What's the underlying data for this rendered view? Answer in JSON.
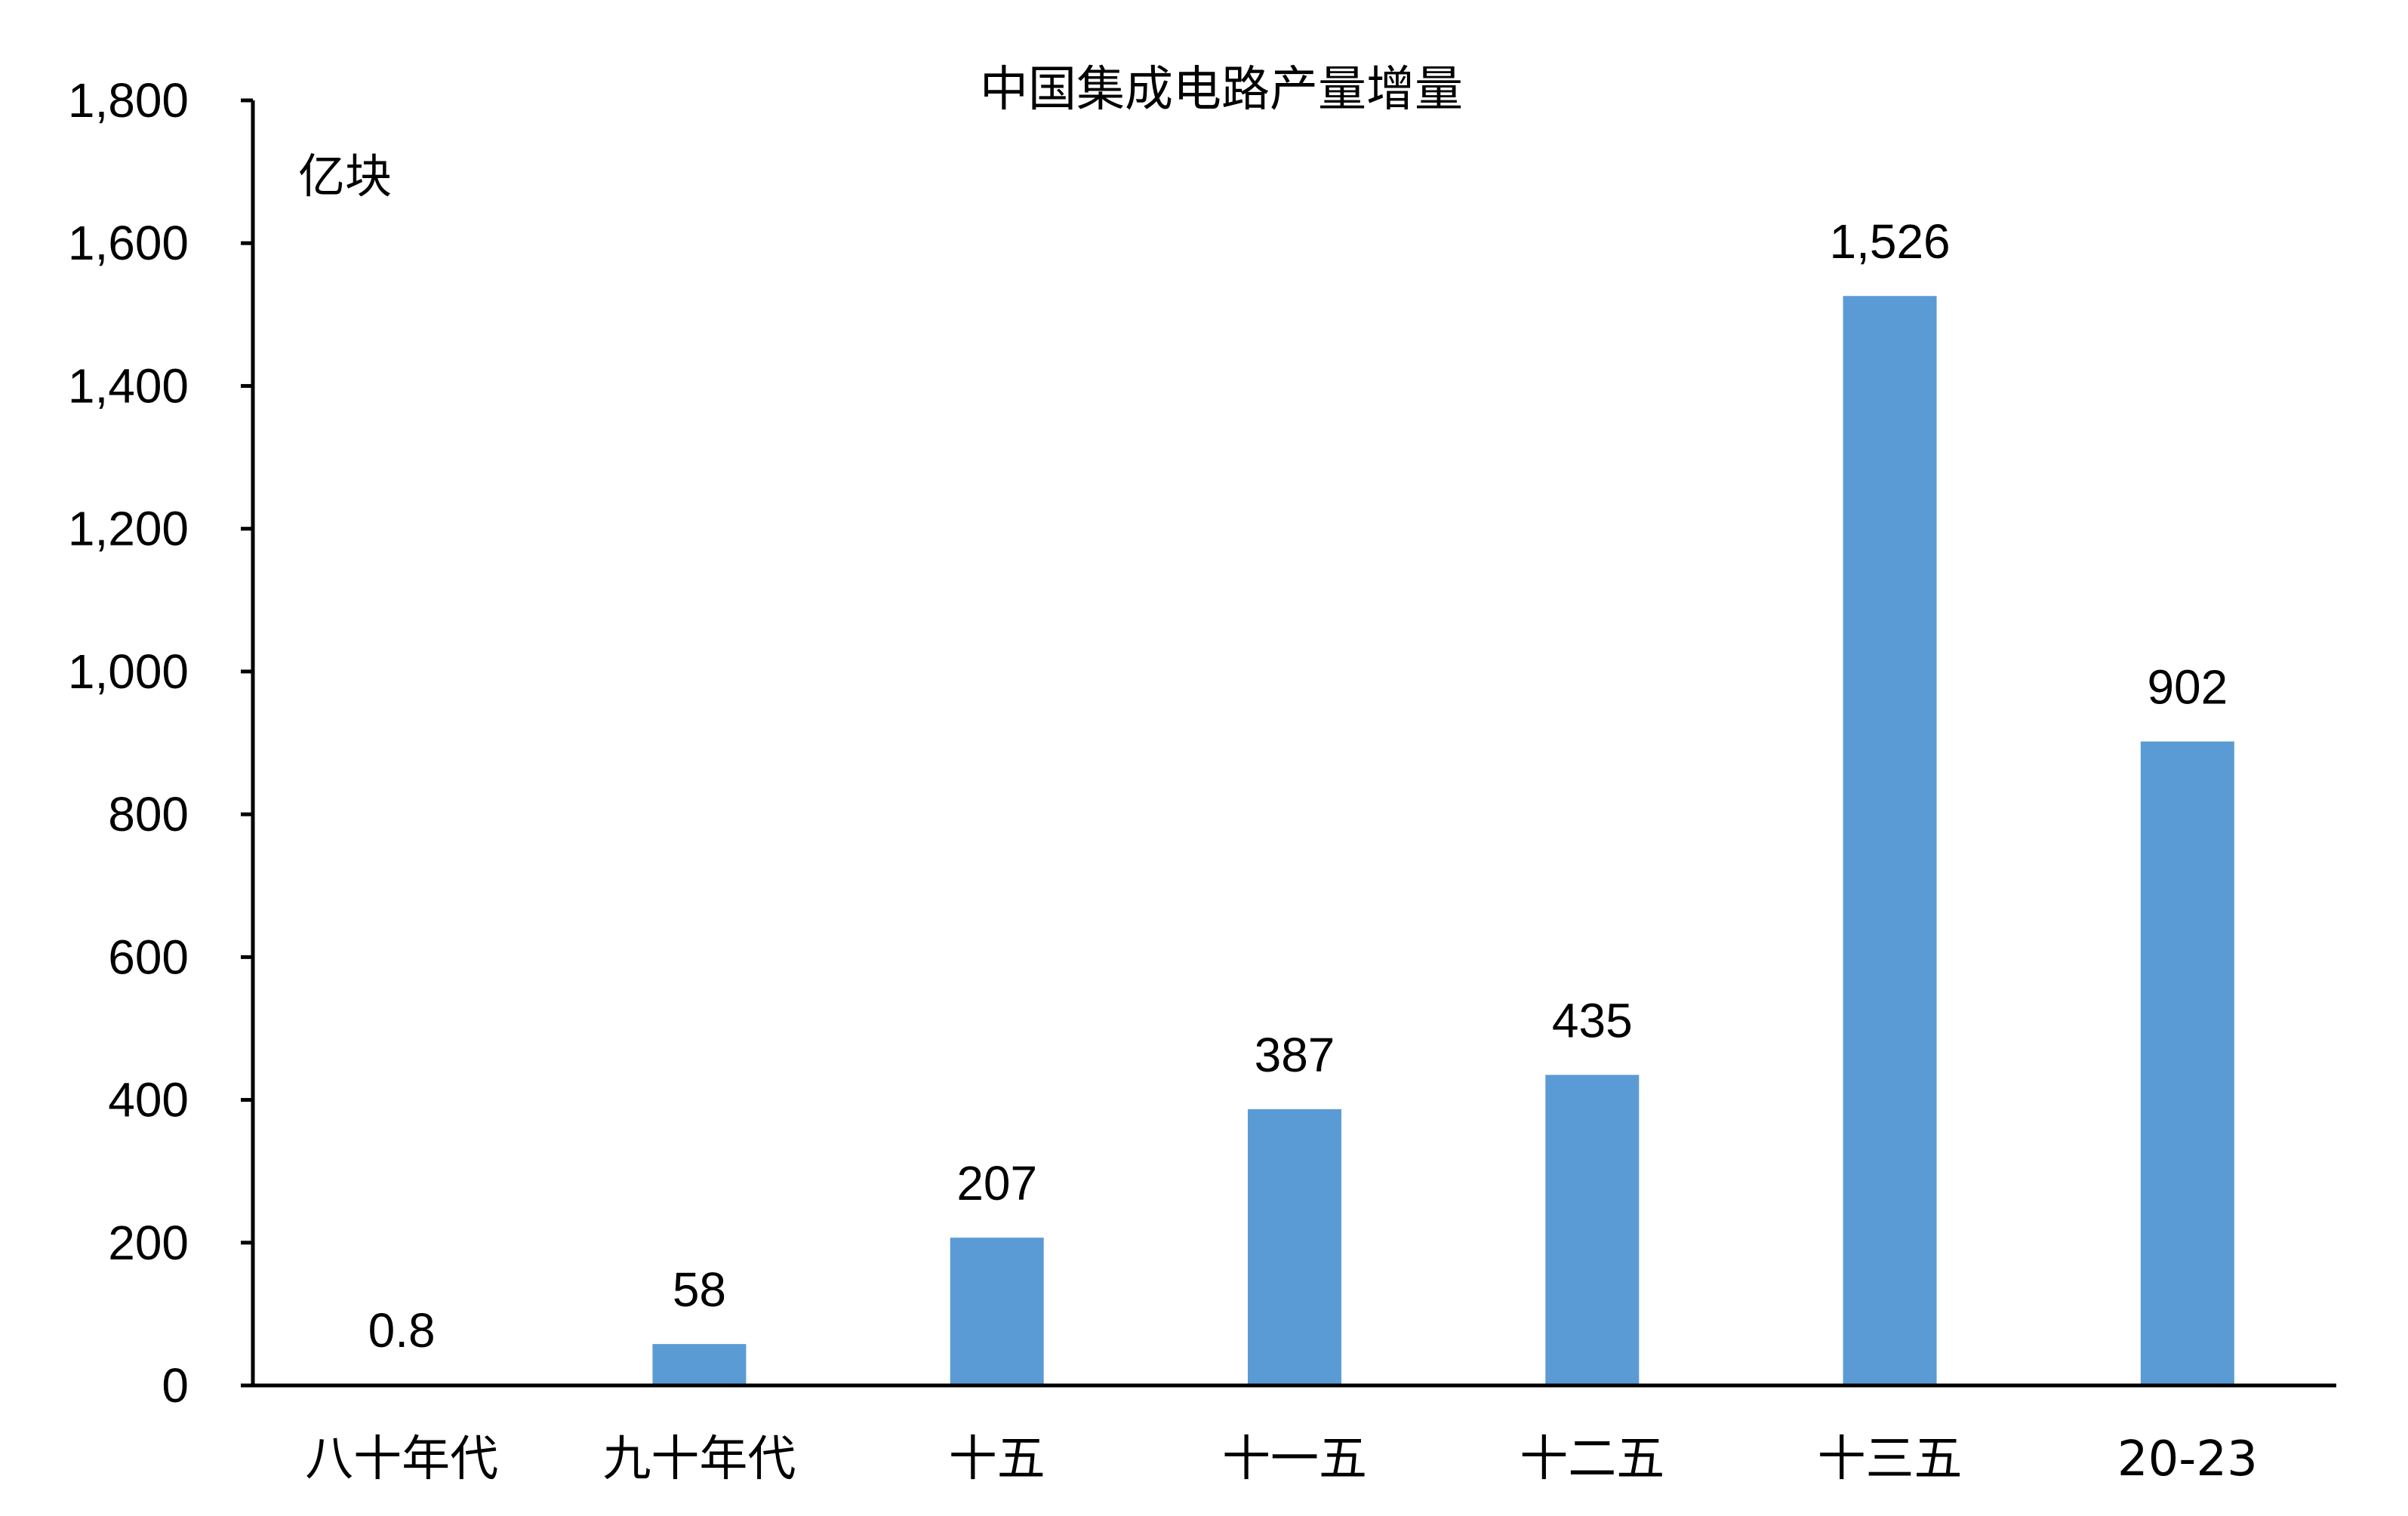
{
  "chart_data": {
    "type": "bar",
    "title": "中国集成电路产量增量",
    "unit_label": "亿块",
    "categories": [
      "八十年代",
      "九十年代",
      "十五",
      "十一五",
      "十二五",
      "十三五",
      "20-23"
    ],
    "values": [
      0.8,
      58,
      207,
      387,
      435,
      1526,
      902
    ],
    "data_labels": [
      "0.8",
      "58",
      "207",
      "387",
      "435",
      "1,526",
      "902"
    ],
    "yticks": [
      0,
      200,
      400,
      600,
      800,
      1000,
      1200,
      1400,
      1600,
      1800
    ],
    "ytick_labels": [
      "0",
      "200",
      "400",
      "600",
      "800",
      "1,000",
      "1,200",
      "1,400",
      "1,600",
      "1,800"
    ],
    "ylim": [
      0,
      1800
    ],
    "xlabel": "",
    "ylabel": "",
    "grid": false,
    "legend": "none",
    "bar_color": "#5B9BD5"
  }
}
